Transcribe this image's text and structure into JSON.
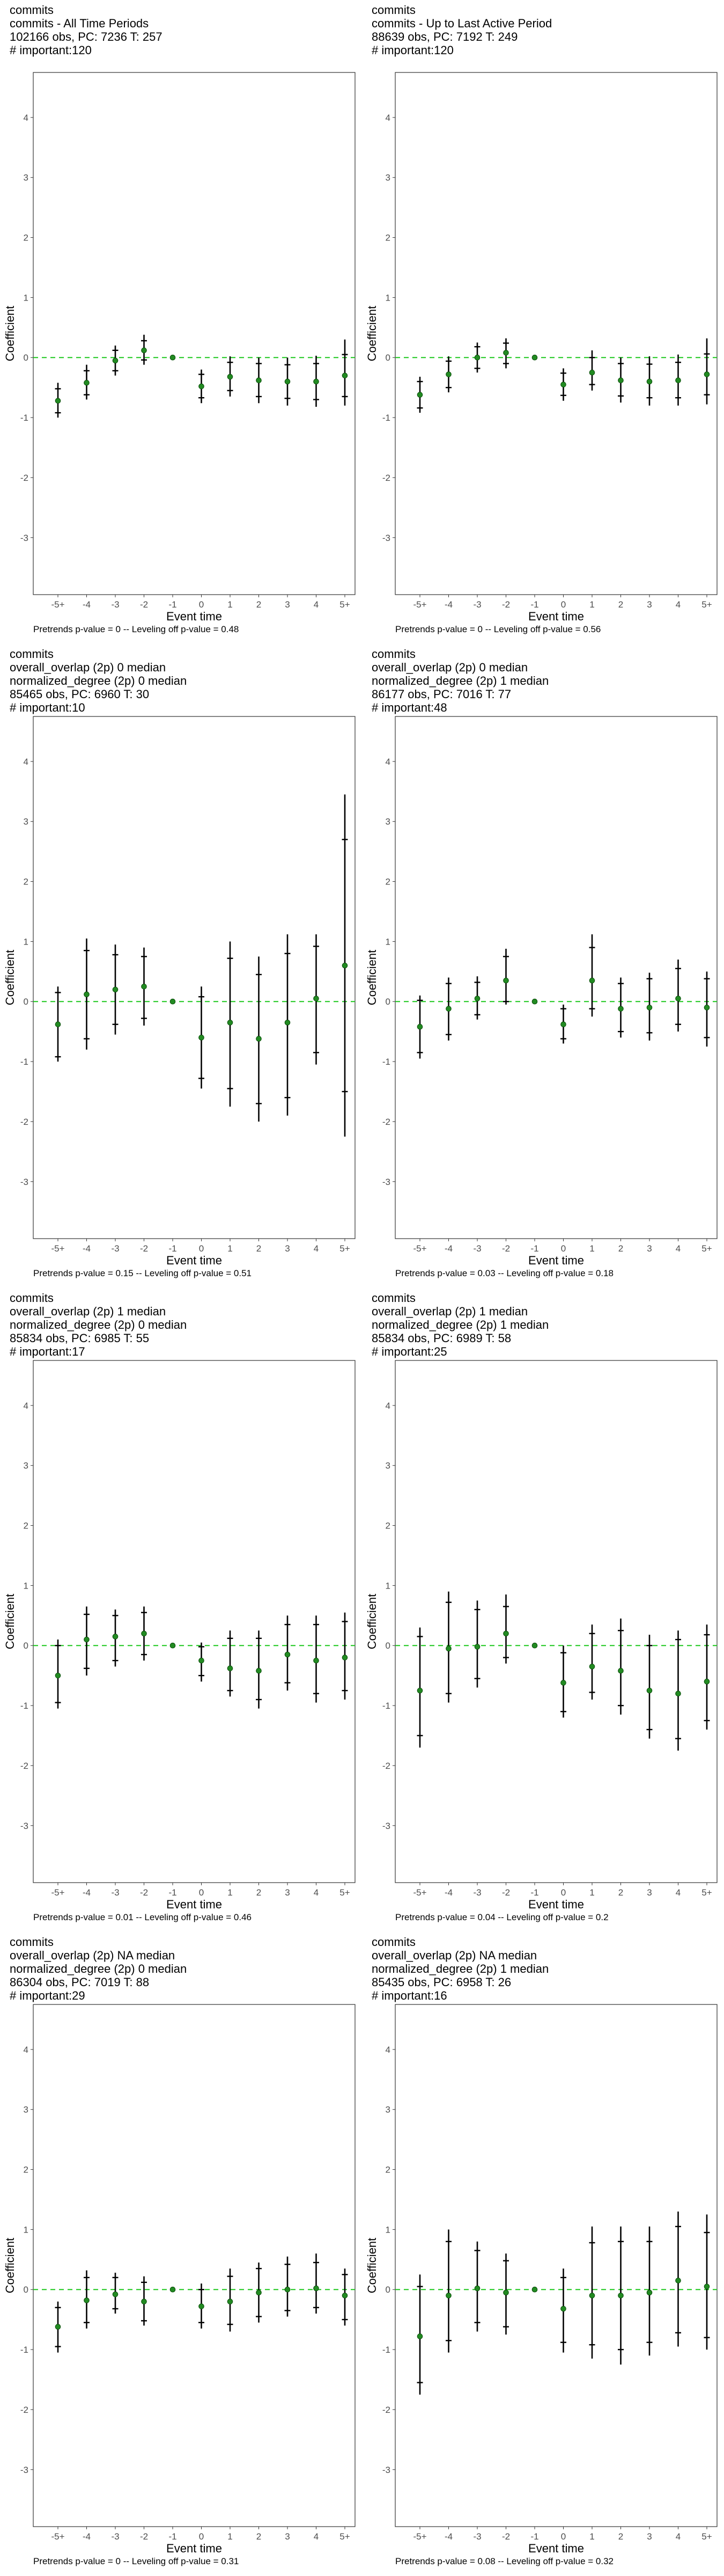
{
  "chart_data": [
    {
      "type": "scatter",
      "title_lines": [
        "commits",
        "commits - All Time Periods",
        "102166 obs, PC: 7236 T: 257",
        "# important:120"
      ],
      "xlabel": "Event time",
      "ylabel": "Coefficient",
      "categories": [
        "-5+",
        "-4",
        "-3",
        "-2",
        "-1",
        "0",
        "1",
        "2",
        "3",
        "4",
        "5+"
      ],
      "yticks": [
        -3,
        -2,
        -1,
        0,
        1,
        2,
        3,
        4
      ],
      "ylim": [
        -3.95,
        4.75
      ],
      "estimate": [
        -0.72,
        -0.42,
        -0.05,
        0.12,
        0.0,
        -0.48,
        -0.32,
        -0.38,
        -0.4,
        -0.4,
        -0.3
      ],
      "ci95_low": [
        -1.0,
        -0.7,
        -0.3,
        -0.12,
        0.0,
        -0.76,
        -0.65,
        -0.76,
        -0.8,
        -0.82,
        -0.8
      ],
      "ci95_high": [
        -0.42,
        -0.12,
        0.2,
        0.38,
        0.0,
        -0.2,
        0.02,
        0.0,
        0.0,
        0.03,
        0.3
      ],
      "ci90_low": [
        -0.92,
        -0.62,
        -0.22,
        -0.04,
        0.0,
        -0.67,
        -0.55,
        -0.65,
        -0.68,
        -0.7,
        -0.65
      ],
      "ci90_high": [
        -0.52,
        -0.22,
        0.12,
        0.28,
        0.0,
        -0.28,
        -0.08,
        -0.1,
        -0.12,
        -0.1,
        0.05
      ],
      "reference_line": 0,
      "footnote": "Pretrends p-value = 0 -- Leveling off p-value = 0.48"
    },
    {
      "type": "scatter",
      "title_lines": [
        "commits",
        "commits - Up to Last Active Period",
        "88639 obs, PC: 7192 T: 249",
        "# important:120"
      ],
      "xlabel": "Event time",
      "ylabel": "Coefficient",
      "categories": [
        "-5+",
        "-4",
        "-3",
        "-2",
        "-1",
        "0",
        "1",
        "2",
        "3",
        "4",
        "5+"
      ],
      "yticks": [
        -3,
        -2,
        -1,
        0,
        1,
        2,
        3,
        4
      ],
      "ylim": [
        -3.95,
        4.75
      ],
      "estimate": [
        -0.62,
        -0.28,
        0.0,
        0.08,
        0.0,
        -0.45,
        -0.25,
        -0.38,
        -0.4,
        -0.38,
        -0.28
      ],
      "ci95_low": [
        -0.92,
        -0.58,
        -0.25,
        -0.18,
        0.0,
        -0.72,
        -0.55,
        -0.75,
        -0.8,
        -0.8,
        -0.78
      ],
      "ci95_high": [
        -0.32,
        0.02,
        0.25,
        0.32,
        0.0,
        -0.18,
        0.12,
        0.0,
        0.02,
        0.05,
        0.32
      ],
      "ci90_low": [
        -0.84,
        -0.5,
        -0.18,
        -0.1,
        0.0,
        -0.63,
        -0.45,
        -0.64,
        -0.67,
        -0.67,
        -0.62
      ],
      "ci90_high": [
        -0.4,
        -0.06,
        0.18,
        0.24,
        0.0,
        -0.26,
        0.0,
        -0.1,
        -0.11,
        -0.08,
        0.06
      ],
      "reference_line": 0,
      "footnote": "Pretrends p-value = 0 -- Leveling off p-value = 0.56"
    },
    {
      "type": "scatter",
      "title_lines": [
        "commits",
        "overall_overlap (2p) 0 median",
        "normalized_degree (2p) 0 median",
        "85465 obs, PC: 6960 T: 30",
        "# important:10"
      ],
      "xlabel": "Event time",
      "ylabel": "Coefficient",
      "categories": [
        "-5+",
        "-4",
        "-3",
        "-2",
        "-1",
        "0",
        "1",
        "2",
        "3",
        "4",
        "5+"
      ],
      "yticks": [
        -3,
        -2,
        -1,
        0,
        1,
        2,
        3,
        4
      ],
      "ylim": [
        -3.95,
        4.75
      ],
      "estimate": [
        -0.38,
        0.12,
        0.2,
        0.25,
        0.0,
        -0.6,
        -0.35,
        -0.62,
        -0.35,
        0.05,
        0.6
      ],
      "ci95_low": [
        -1.0,
        -0.8,
        -0.55,
        -0.4,
        0.0,
        -1.45,
        -1.75,
        -2.0,
        -1.9,
        -1.05,
        -2.25
      ],
      "ci95_high": [
        0.25,
        1.05,
        0.95,
        0.9,
        0.0,
        0.25,
        1.0,
        0.75,
        1.12,
        1.12,
        3.45
      ],
      "ci90_low": [
        -0.92,
        -0.62,
        -0.38,
        -0.28,
        0.0,
        -1.28,
        -1.45,
        -1.7,
        -1.6,
        -0.85,
        -1.5
      ],
      "ci90_high": [
        0.15,
        0.85,
        0.78,
        0.75,
        0.0,
        0.08,
        0.72,
        0.45,
        0.8,
        0.92,
        2.7
      ],
      "reference_line": 0,
      "footnote": "Pretrends p-value = 0.15 -- Leveling off p-value = 0.51"
    },
    {
      "type": "scatter",
      "title_lines": [
        "commits",
        "overall_overlap (2p) 0 median",
        "normalized_degree (2p) 1 median",
        "86177 obs, PC: 7016 T: 77",
        "# important:48"
      ],
      "xlabel": "Event time",
      "ylabel": "Coefficient",
      "categories": [
        "-5+",
        "-4",
        "-3",
        "-2",
        "-1",
        "0",
        "1",
        "2",
        "3",
        "4",
        "5+"
      ],
      "yticks": [
        -3,
        -2,
        -1,
        0,
        1,
        2,
        3,
        4
      ],
      "ylim": [
        -3.95,
        4.75
      ],
      "estimate": [
        -0.42,
        -0.12,
        0.05,
        0.35,
        0.0,
        -0.38,
        0.35,
        -0.12,
        -0.1,
        0.05,
        -0.1
      ],
      "ci95_low": [
        -0.95,
        -0.65,
        -0.3,
        -0.05,
        0.0,
        -0.7,
        -0.25,
        -0.6,
        -0.65,
        -0.5,
        -0.75
      ],
      "ci95_high": [
        0.1,
        0.4,
        0.42,
        0.88,
        0.0,
        -0.05,
        1.12,
        0.4,
        0.48,
        0.7,
        0.5
      ],
      "ci90_low": [
        -0.85,
        -0.55,
        -0.22,
        0.0,
        0.0,
        -0.62,
        -0.12,
        -0.5,
        -0.52,
        -0.38,
        -0.6
      ],
      "ci90_high": [
        0.02,
        0.3,
        0.32,
        0.75,
        0.0,
        -0.12,
        0.9,
        0.3,
        0.38,
        0.55,
        0.38
      ],
      "reference_line": 0,
      "footnote": "Pretrends p-value = 0.03 -- Leveling off p-value = 0.18"
    },
    {
      "type": "scatter",
      "title_lines": [
        "commits",
        "overall_overlap (2p) 1 median",
        "normalized_degree (2p) 0 median",
        "85834 obs, PC: 6985 T: 55",
        "# important:17"
      ],
      "xlabel": "Event time",
      "ylabel": "Coefficient",
      "categories": [
        "-5+",
        "-4",
        "-3",
        "-2",
        "-1",
        "0",
        "1",
        "2",
        "3",
        "4",
        "5+"
      ],
      "yticks": [
        -3,
        -2,
        -1,
        0,
        1,
        2,
        3,
        4
      ],
      "ylim": [
        -3.95,
        4.75
      ],
      "estimate": [
        -0.5,
        0.1,
        0.15,
        0.2,
        0.0,
        -0.25,
        -0.38,
        -0.42,
        -0.15,
        -0.25,
        -0.2
      ],
      "ci95_low": [
        -1.05,
        -0.5,
        -0.35,
        -0.25,
        0.0,
        -0.6,
        -0.85,
        -1.05,
        -0.75,
        -0.95,
        -0.9
      ],
      "ci95_high": [
        0.1,
        0.65,
        0.6,
        0.65,
        0.0,
        0.05,
        0.25,
        0.25,
        0.5,
        0.5,
        0.55
      ],
      "ci90_low": [
        -0.95,
        -0.38,
        -0.25,
        -0.15,
        0.0,
        -0.5,
        -0.75,
        -0.9,
        -0.62,
        -0.8,
        -0.75
      ],
      "ci90_high": [
        0.0,
        0.52,
        0.5,
        0.55,
        0.0,
        -0.02,
        0.12,
        0.12,
        0.35,
        0.35,
        0.4
      ],
      "reference_line": 0,
      "footnote": "Pretrends p-value = 0.01 -- Leveling off p-value = 0.46"
    },
    {
      "type": "scatter",
      "title_lines": [
        "commits",
        "overall_overlap (2p) 1 median",
        "normalized_degree (2p) 1 median",
        "85834 obs, PC: 6989 T: 58",
        "# important:25"
      ],
      "xlabel": "Event time",
      "ylabel": "Coefficient",
      "categories": [
        "-5+",
        "-4",
        "-3",
        "-2",
        "-1",
        "0",
        "1",
        "2",
        "3",
        "4",
        "5+"
      ],
      "yticks": [
        -3,
        -2,
        -1,
        0,
        1,
        2,
        3,
        4
      ],
      "ylim": [
        -3.95,
        4.75
      ],
      "estimate": [
        -0.75,
        -0.05,
        -0.02,
        0.2,
        0.0,
        -0.62,
        -0.35,
        -0.42,
        -0.75,
        -0.8,
        -0.6
      ],
      "ci95_low": [
        -1.7,
        -0.95,
        -0.7,
        -0.3,
        0.0,
        -1.2,
        -0.9,
        -1.15,
        -1.55,
        -1.75,
        -1.4
      ],
      "ci95_high": [
        0.3,
        0.9,
        0.75,
        0.85,
        0.0,
        0.0,
        0.35,
        0.45,
        0.18,
        0.25,
        0.35
      ],
      "ci90_low": [
        -1.5,
        -0.8,
        -0.55,
        -0.2,
        0.0,
        -1.1,
        -0.78,
        -1.0,
        -1.4,
        -1.55,
        -1.25
      ],
      "ci90_high": [
        0.15,
        0.72,
        0.6,
        0.65,
        0.0,
        -0.12,
        0.2,
        0.25,
        0.0,
        0.1,
        0.18
      ],
      "reference_line": 0,
      "footnote": "Pretrends p-value = 0.04 -- Leveling off p-value = 0.2"
    },
    {
      "type": "scatter",
      "title_lines": [
        "commits",
        "overall_overlap (2p) NA median",
        "normalized_degree (2p) 0 median",
        "86304 obs, PC: 7019 T: 88",
        "# important:29"
      ],
      "xlabel": "Event time",
      "ylabel": "Coefficient",
      "categories": [
        "-5+",
        "-4",
        "-3",
        "-2",
        "-1",
        "0",
        "1",
        "2",
        "3",
        "4",
        "5+"
      ],
      "yticks": [
        -3,
        -2,
        -1,
        0,
        1,
        2,
        3,
        4
      ],
      "ylim": [
        -3.95,
        4.75
      ],
      "estimate": [
        -0.62,
        -0.18,
        -0.08,
        -0.2,
        0.0,
        -0.28,
        -0.2,
        -0.05,
        0.0,
        0.02,
        -0.1
      ],
      "ci95_low": [
        -1.05,
        -0.65,
        -0.4,
        -0.6,
        0.0,
        -0.65,
        -0.7,
        -0.55,
        -0.45,
        -0.4,
        -0.6
      ],
      "ci95_high": [
        -0.2,
        0.32,
        0.28,
        0.22,
        0.0,
        0.1,
        0.35,
        0.45,
        0.55,
        0.6,
        0.35
      ],
      "ci90_low": [
        -0.95,
        -0.55,
        -0.32,
        -0.52,
        0.0,
        -0.55,
        -0.58,
        -0.45,
        -0.35,
        -0.3,
        -0.5
      ],
      "ci90_high": [
        -0.3,
        0.2,
        0.2,
        0.12,
        0.0,
        0.0,
        0.22,
        0.35,
        0.42,
        0.45,
        0.25
      ],
      "reference_line": 0,
      "footnote": "Pretrends p-value = 0 -- Leveling off p-value = 0.31"
    },
    {
      "type": "scatter",
      "title_lines": [
        "commits",
        "overall_overlap (2p) NA median",
        "normalized_degree (2p) 1 median",
        "85435 obs, PC: 6958 T: 26",
        "# important:16"
      ],
      "xlabel": "Event time",
      "ylabel": "Coefficient",
      "categories": [
        "-5+",
        "-4",
        "-3",
        "-2",
        "-1",
        "0",
        "1",
        "2",
        "3",
        "4",
        "5+"
      ],
      "yticks": [
        -3,
        -2,
        -1,
        0,
        1,
        2,
        3,
        4
      ],
      "ylim": [
        -3.95,
        4.75
      ],
      "estimate": [
        -0.78,
        -0.1,
        0.02,
        -0.05,
        0.0,
        -0.32,
        -0.1,
        -0.1,
        -0.05,
        0.15,
        0.05
      ],
      "ci95_low": [
        -1.75,
        -1.05,
        -0.7,
        -0.75,
        0.0,
        -1.05,
        -1.15,
        -1.25,
        -1.1,
        -0.95,
        -1.0
      ],
      "ci95_high": [
        0.25,
        1.0,
        0.8,
        0.6,
        0.0,
        0.35,
        1.05,
        1.05,
        1.05,
        1.3,
        1.25
      ],
      "ci90_low": [
        -1.55,
        -0.85,
        -0.55,
        -0.62,
        0.0,
        -0.88,
        -0.92,
        -1.0,
        -0.88,
        -0.72,
        -0.8
      ],
      "ci90_high": [
        0.05,
        0.8,
        0.65,
        0.48,
        0.0,
        0.2,
        0.78,
        0.8,
        0.8,
        1.05,
        0.95
      ],
      "reference_line": 0,
      "footnote": "Pretrends p-value = 0.08 -- Leveling off p-value = 0.32"
    }
  ]
}
